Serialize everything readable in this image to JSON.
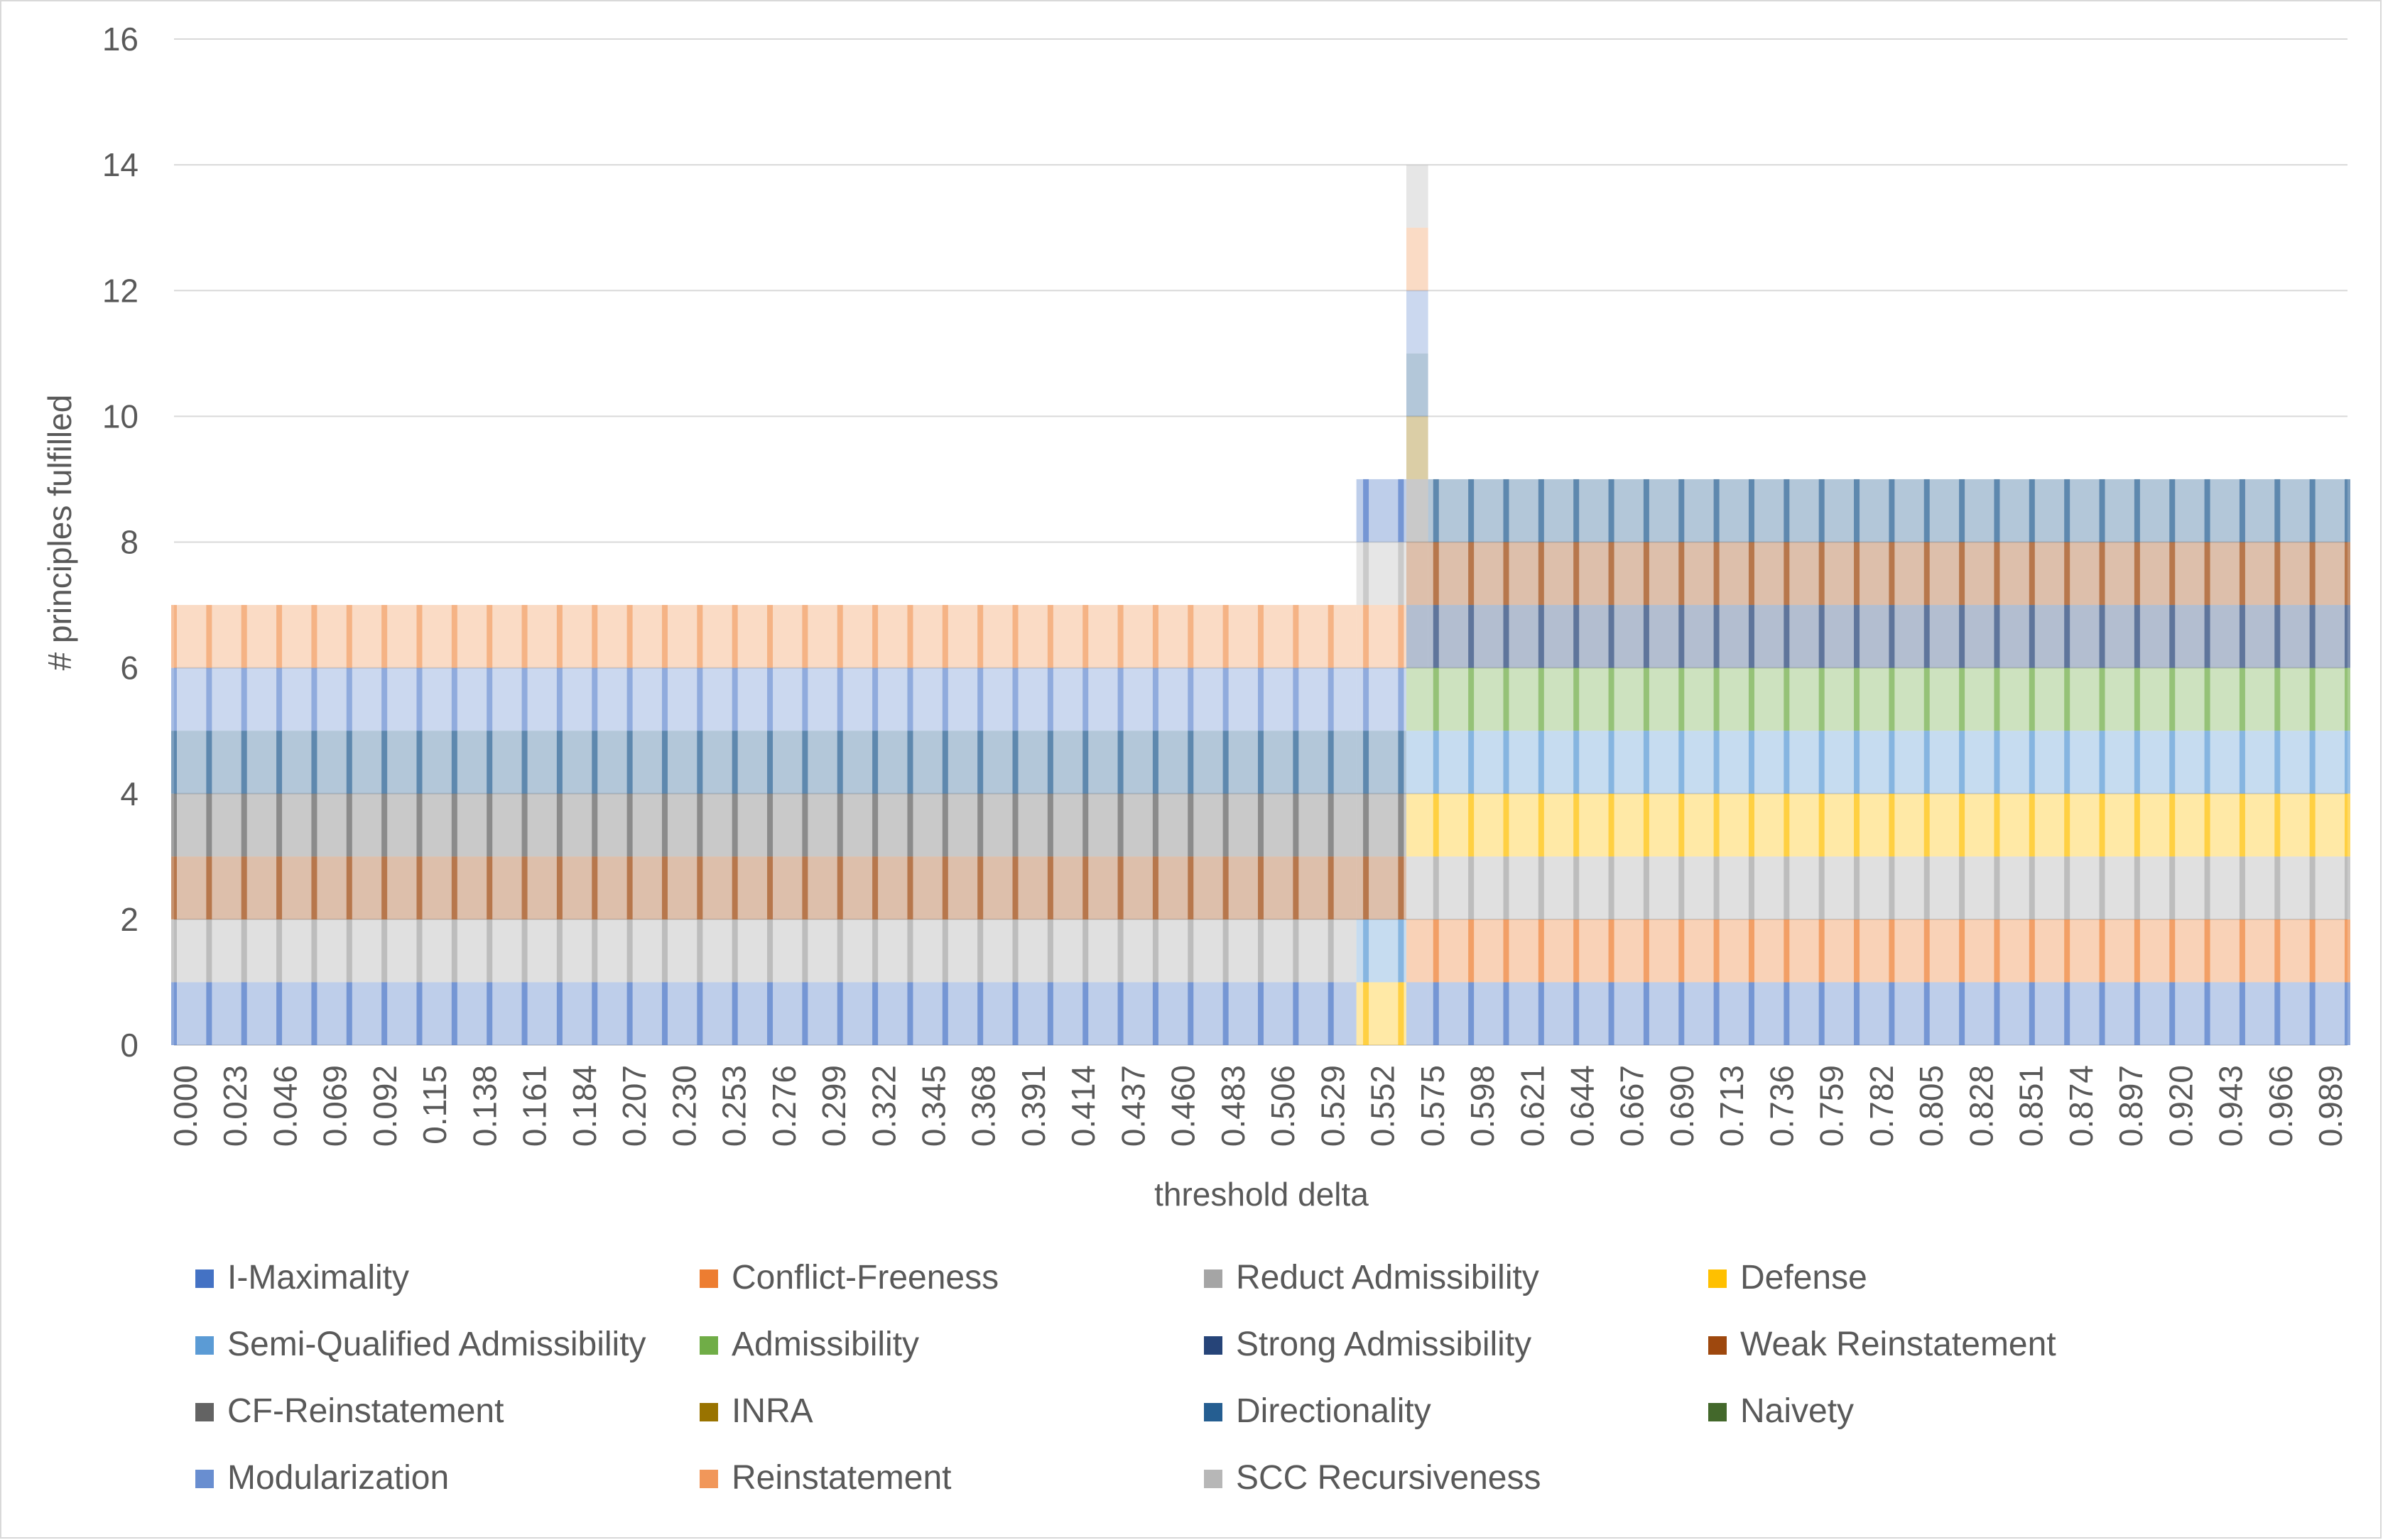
{
  "chart_data": {
    "type": "bar",
    "stacked": true,
    "xlabel": "threshold delta",
    "ylabel": "# principles fulfilled",
    "ylim": [
      0,
      16
    ],
    "yticks": [
      0,
      2,
      4,
      6,
      8,
      10,
      12,
      14,
      16
    ],
    "grid": "horizontal",
    "legend_position": "bottom",
    "tick_labels": [
      "0.000",
      "0.023",
      "0.046",
      "0.069",
      "0.092",
      "0.115",
      "0.138",
      "0.161",
      "0.184",
      "0.207",
      "0.230",
      "0.253",
      "0.276",
      "0.299",
      "0.322",
      "0.345",
      "0.368",
      "0.391",
      "0.414",
      "0.437",
      "0.460",
      "0.483",
      "0.506",
      "0.529",
      "0.552",
      "0.575",
      "0.598",
      "0.621",
      "0.644",
      "0.667",
      "0.690",
      "0.713",
      "0.736",
      "0.759",
      "0.782",
      "0.805",
      "0.828",
      "0.851",
      "0.874",
      "0.897",
      "0.920",
      "0.943",
      "0.966",
      "0.989"
    ],
    "x_range": [
      0,
      1
    ],
    "series": [
      {
        "name": "I-Maximality",
        "color": "#4472c4"
      },
      {
        "name": "Conflict-Freeness",
        "color": "#ed7d31"
      },
      {
        "name": "Reduct Admissibility",
        "color": "#a5a5a5"
      },
      {
        "name": "Defense",
        "color": "#ffc000"
      },
      {
        "name": "Semi-Qualified Admissibility",
        "color": "#5b9bd5"
      },
      {
        "name": "Admissibility",
        "color": "#70ad47"
      },
      {
        "name": "Strong Admissibility",
        "color": "#264478"
      },
      {
        "name": "Weak Reinstatement",
        "color": "#9e480e"
      },
      {
        "name": "CF-Reinstatement",
        "color": "#636363"
      },
      {
        "name": "INRA",
        "color": "#997300"
      },
      {
        "name": "Directionality",
        "color": "#255e91"
      },
      {
        "name": "Naivety",
        "color": "#43682b"
      },
      {
        "name": "Modularization",
        "color": "#698ed0"
      },
      {
        "name": "Reinstatement",
        "color": "#f1975a"
      },
      {
        "name": "SCC Recursiveness",
        "color": "#b7b7b7"
      }
    ],
    "regions": [
      {
        "x_from": 0.0,
        "x_to": 0.544,
        "fulfilled": [
          "I-Maximality",
          "Reduct Admissibility",
          "Weak Reinstatement",
          "CF-Reinstatement",
          "Directionality",
          "Modularization",
          "Reinstatement"
        ],
        "total": 7
      },
      {
        "x_from": 0.544,
        "x_to": 0.567,
        "fulfilled": [
          "Defense",
          "Semi-Qualified Admissibility",
          "Weak Reinstatement",
          "CF-Reinstatement",
          "Directionality",
          "Modularization",
          "Reinstatement",
          "SCC Recursiveness",
          "I-Maximality"
        ],
        "total": 9
      },
      {
        "x_from": 0.567,
        "x_to": 0.577,
        "fulfilled": [
          "I-Maximality",
          "Conflict-Freeness",
          "Reduct Admissibility",
          "Defense",
          "Semi-Qualified Admissibility",
          "Admissibility",
          "Strong Admissibility",
          "Weak Reinstatement",
          "CF-Reinstatement",
          "INRA",
          "Directionality",
          "Modularization",
          "Reinstatement",
          "SCC Recursiveness"
        ],
        "total": 14
      },
      {
        "x_from": 0.577,
        "x_to": 1.0,
        "fulfilled": [
          "I-Maximality",
          "Conflict-Freeness",
          "Reduct Admissibility",
          "Defense",
          "Semi-Qualified Admissibility",
          "Admissibility",
          "Strong Admissibility",
          "Weak Reinstatement",
          "Directionality"
        ],
        "total": 9
      }
    ]
  }
}
